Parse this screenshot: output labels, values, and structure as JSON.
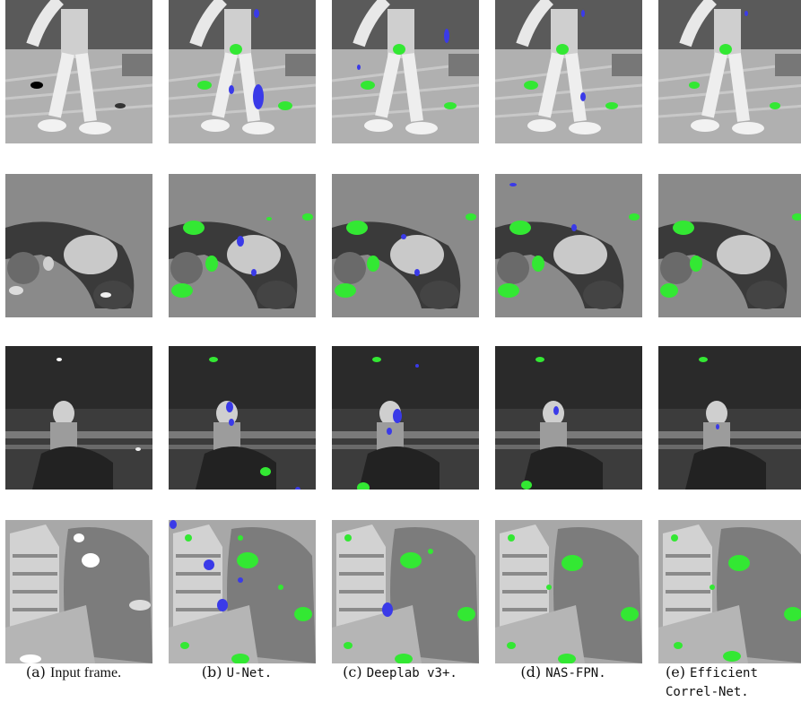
{
  "figure": {
    "columns": [
      {
        "tag": "(a)",
        "name": "Input frame.",
        "mono": false
      },
      {
        "tag": "(b)",
        "name": "U-Net.",
        "mono": true
      },
      {
        "tag": "(c)",
        "name": "Deeplab v3+.",
        "mono": true
      },
      {
        "tag": "(d)",
        "name": "NAS-FPN.",
        "mono": true
      },
      {
        "tag": "(e)",
        "name": "Efficient Correl-Net.",
        "mono": true
      }
    ],
    "rows": [
      "row-walking-legs",
      "row-swimmer",
      "row-rider",
      "row-hand-building"
    ],
    "colors": {
      "green": "#33e833",
      "blue": "#3a3ae8"
    }
  }
}
